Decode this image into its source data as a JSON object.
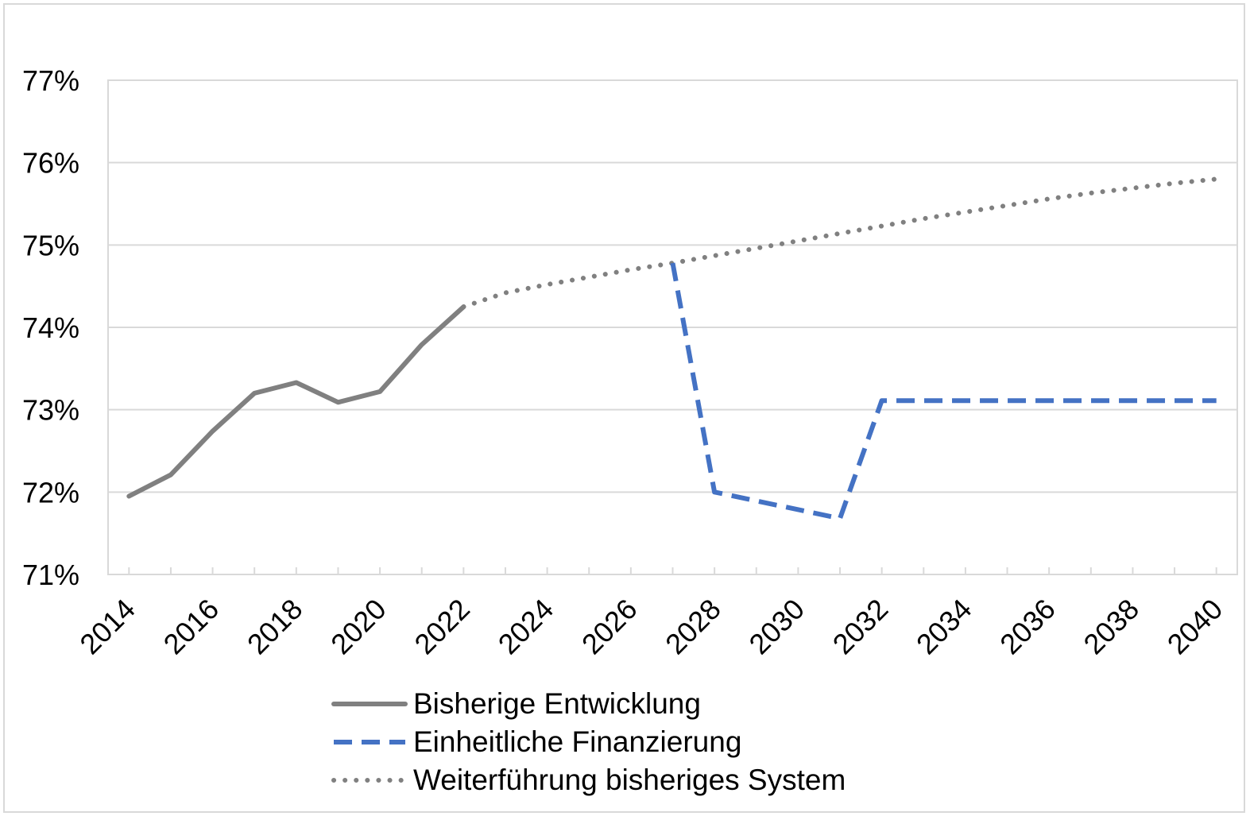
{
  "chart_data": {
    "type": "line",
    "title": "",
    "xlabel": "",
    "ylabel": "",
    "xlim": [
      2013.5,
      2040.5
    ],
    "ylim": [
      0.71,
      0.77
    ],
    "x_ticks": [
      2014,
      2016,
      2018,
      2020,
      2022,
      2024,
      2026,
      2028,
      2030,
      2032,
      2034,
      2036,
      2038,
      2040
    ],
    "x_tick_labels": [
      "2014",
      "2016",
      "2018",
      "2020",
      "2022",
      "2024",
      "2026",
      "2028",
      "2030",
      "2032",
      "2034",
      "2036",
      "2038",
      "2040"
    ],
    "y_ticks": [
      0.71,
      0.72,
      0.73,
      0.74,
      0.75,
      0.76,
      0.77
    ],
    "y_tick_labels": [
      "71%",
      "72%",
      "73%",
      "74%",
      "75%",
      "76%",
      "77%"
    ],
    "grid": "horizontal",
    "legend_position": "bottom-center",
    "series": [
      {
        "name": "Bisherige Entwicklung",
        "style": "solid",
        "color": "#808080",
        "x": [
          2014,
          2015,
          2016,
          2017,
          2018,
          2019,
          2020,
          2021,
          2022
        ],
        "y": [
          0.7195,
          0.7221,
          0.7274,
          0.732,
          0.7333,
          0.7309,
          0.7322,
          0.7379,
          0.7425
        ]
      },
      {
        "name": "Einheitliche Finanzierung",
        "style": "dashed",
        "color": "#4472c4",
        "x": [
          2027,
          2028,
          2031,
          2032,
          2040
        ],
        "y": [
          0.7478,
          0.72,
          0.7168,
          0.7311,
          0.7311
        ]
      },
      {
        "name": "Weiterführung bisheriges System",
        "style": "dotted",
        "color": "#808080",
        "x": [
          2022,
          2023,
          2024,
          2025,
          2026,
          2027,
          2028,
          2029,
          2030,
          2031,
          2032,
          2033,
          2034,
          2035,
          2036,
          2037,
          2038,
          2039,
          2040
        ],
        "y": [
          0.7425,
          0.7442,
          0.7452,
          0.7461,
          0.747,
          0.7478,
          0.7487,
          0.7496,
          0.7505,
          0.7514,
          0.7523,
          0.7532,
          0.754,
          0.7548,
          0.7556,
          0.7563,
          0.7569,
          0.7575,
          0.758
        ]
      }
    ]
  }
}
